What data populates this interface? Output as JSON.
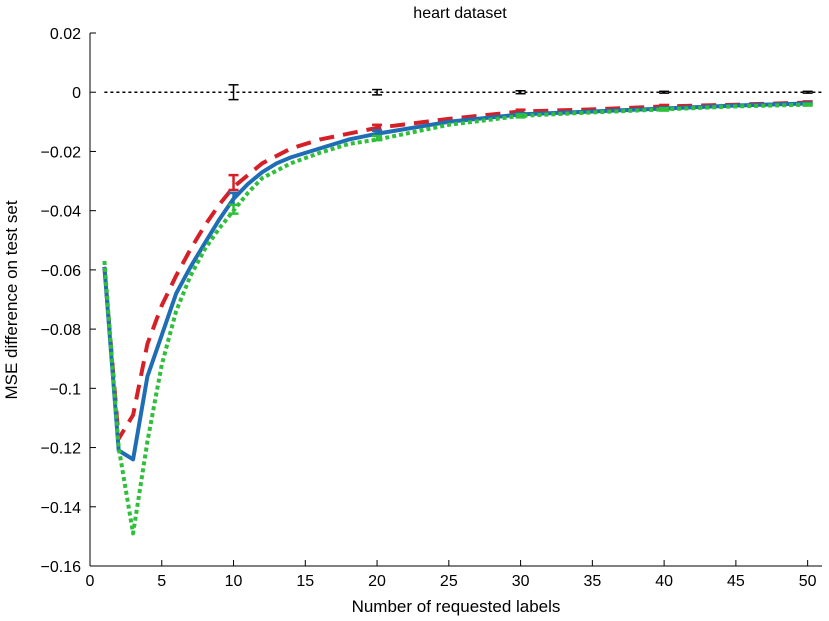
{
  "chart_data": {
    "type": "line",
    "title": "heart dataset",
    "xlabel": "Number of requested labels",
    "ylabel": "MSE difference on test set",
    "xlim": [
      0,
      51
    ],
    "ylim": [
      -0.16,
      0.02
    ],
    "xticks": [
      0,
      5,
      10,
      15,
      20,
      25,
      30,
      35,
      40,
      45,
      50
    ],
    "xtick_labels": [
      "0",
      "5",
      "10",
      "15",
      "20",
      "25",
      "30",
      "35",
      "40",
      "45",
      "50"
    ],
    "yticks": [
      0.02,
      0,
      -0.02,
      -0.04,
      -0.06,
      -0.08,
      -0.1,
      -0.12,
      -0.14,
      -0.16
    ],
    "ytick_labels": [
      "0.02",
      "0",
      "−0.02",
      "−0.04",
      "−0.06",
      "−0.08",
      "−0.1",
      "−0.12",
      "−0.14",
      "−0.16"
    ],
    "grid": false,
    "series": [
      {
        "style": "dotted",
        "color": "#000000",
        "x": [
          1,
          51
        ],
        "y": [
          0,
          0
        ],
        "errorbars": [
          {
            "x": 10,
            "y": 0.0,
            "err": 0.0025
          },
          {
            "x": 20,
            "y": 0.0,
            "err": 0.0009
          },
          {
            "x": 30,
            "y": 0.0,
            "err": 0.0005
          },
          {
            "x": 40,
            "y": 0.0,
            "err": 0.0003
          },
          {
            "x": 50,
            "y": 0.0,
            "err": 0.0003
          }
        ]
      },
      {
        "style": "dashed",
        "color": "#d62027",
        "x": [
          1,
          2,
          3,
          4,
          5,
          6,
          7,
          8,
          9,
          10,
          12,
          14,
          16,
          18,
          20,
          25,
          30,
          35,
          40,
          45,
          50
        ],
        "y": [
          -0.059,
          -0.117,
          -0.109,
          -0.085,
          -0.072,
          -0.062,
          -0.053,
          -0.045,
          -0.038,
          -0.032,
          -0.024,
          -0.019,
          -0.016,
          -0.014,
          -0.012,
          -0.009,
          -0.0065,
          -0.0058,
          -0.0048,
          -0.0042,
          -0.0035
        ],
        "errorbars": [
          {
            "x": 10,
            "y": -0.0305,
            "err": 0.0025
          },
          {
            "x": 20,
            "y": -0.012,
            "err": 0.001
          },
          {
            "x": 30,
            "y": -0.0065,
            "err": 0.0006
          },
          {
            "x": 40,
            "y": -0.0048,
            "err": 0.0005
          },
          {
            "x": 50,
            "y": -0.0035,
            "err": 0.0004
          }
        ]
      },
      {
        "style": "solid",
        "color": "#1f6eb5",
        "x": [
          1,
          2,
          3,
          4,
          5,
          6,
          7,
          8,
          9,
          10,
          11,
          12,
          13,
          14,
          16,
          18,
          20,
          25,
          30,
          35,
          40,
          45,
          50
        ],
        "y": [
          -0.059,
          -0.121,
          -0.124,
          -0.096,
          -0.082,
          -0.068,
          -0.059,
          -0.051,
          -0.043,
          -0.036,
          -0.031,
          -0.027,
          -0.024,
          -0.022,
          -0.019,
          -0.016,
          -0.014,
          -0.01,
          -0.0075,
          -0.0065,
          -0.0055,
          -0.0045,
          -0.0038
        ],
        "errorbars": [
          {
            "x": 10,
            "y": -0.036,
            "err": 0.002
          },
          {
            "x": 20,
            "y": -0.0138,
            "err": 0.0009
          },
          {
            "x": 30,
            "y": -0.0075,
            "err": 0.0005
          },
          {
            "x": 40,
            "y": -0.0055,
            "err": 0.0004
          },
          {
            "x": 50,
            "y": -0.0038,
            "err": 0.0003
          }
        ]
      },
      {
        "style": "dotted",
        "color": "#2fbf3a",
        "x": [
          1,
          2,
          3,
          4,
          5,
          6,
          7,
          8,
          9,
          10,
          11,
          12,
          14,
          16,
          18,
          20,
          25,
          30,
          35,
          40,
          45,
          50
        ],
        "y": [
          -0.057,
          -0.12,
          -0.149,
          -0.118,
          -0.092,
          -0.074,
          -0.062,
          -0.053,
          -0.046,
          -0.04,
          -0.034,
          -0.029,
          -0.024,
          -0.0205,
          -0.0175,
          -0.016,
          -0.011,
          -0.008,
          -0.0068,
          -0.0058,
          -0.0048,
          -0.0042
        ],
        "errorbars": [
          {
            "x": 10,
            "y": -0.0395,
            "err": 0.0015
          },
          {
            "x": 20,
            "y": -0.0155,
            "err": 0.0007
          },
          {
            "x": 30,
            "y": -0.008,
            "err": 0.0005
          },
          {
            "x": 40,
            "y": -0.0058,
            "err": 0.0004
          },
          {
            "x": 50,
            "y": -0.0042,
            "err": 0.0003
          }
        ]
      }
    ]
  }
}
